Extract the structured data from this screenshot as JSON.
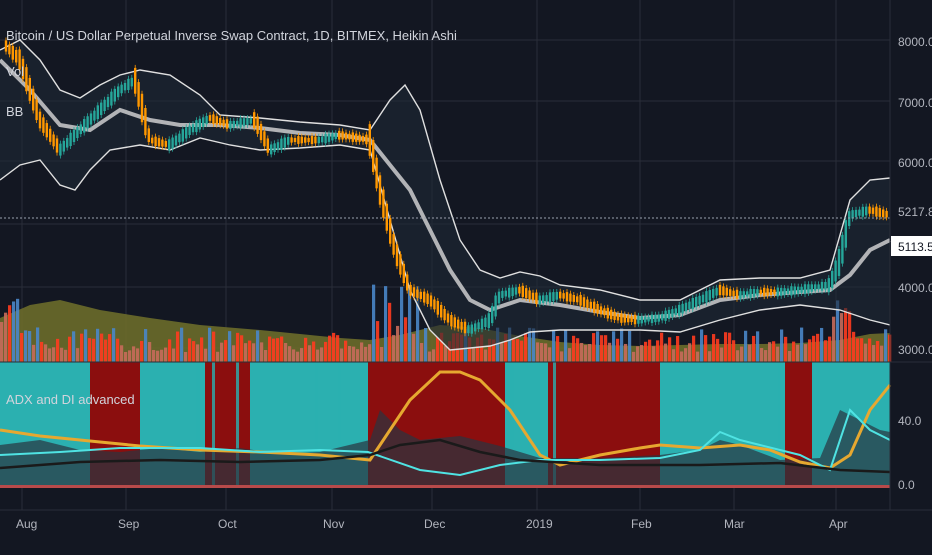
{
  "header": {
    "title": "Bitcoin / US Dollar Perpetual Inverse Swap Contract, 1D, BITMEX, Heikin Ashi",
    "study_vol": "Vol",
    "study_bb": "BB"
  },
  "price_pane": {
    "y_ticks": [
      "8000.0",
      "7000.0",
      "6000.0",
      "4000.0",
      "3000.0"
    ],
    "last_price": "5217.8",
    "indicator_value": "5113.5"
  },
  "adx_pane": {
    "title": "ADX and DI advanced",
    "y_ticks": [
      "40.0",
      "0.0"
    ]
  },
  "time_axis": {
    "labels": [
      "Aug",
      "Sep",
      "Oct",
      "Nov",
      "Dec",
      "2019",
      "Feb",
      "Mar",
      "Apr"
    ]
  },
  "colors": {
    "background": "#131722",
    "grid": "#2a2e39",
    "candle_up": "#26a69a",
    "candle_down": "#ff9800",
    "bb_band": "#e0e0e0",
    "volume_red": "#ff3b1f",
    "volume_blue": "#4a86c8",
    "volume_ma": "#6b6b2a",
    "adx_red": "#8b0e0e",
    "adx_cyan": "#2bb0b0",
    "adx_line": "#e6a830",
    "di_plus": "#4fe3e3"
  }
}
